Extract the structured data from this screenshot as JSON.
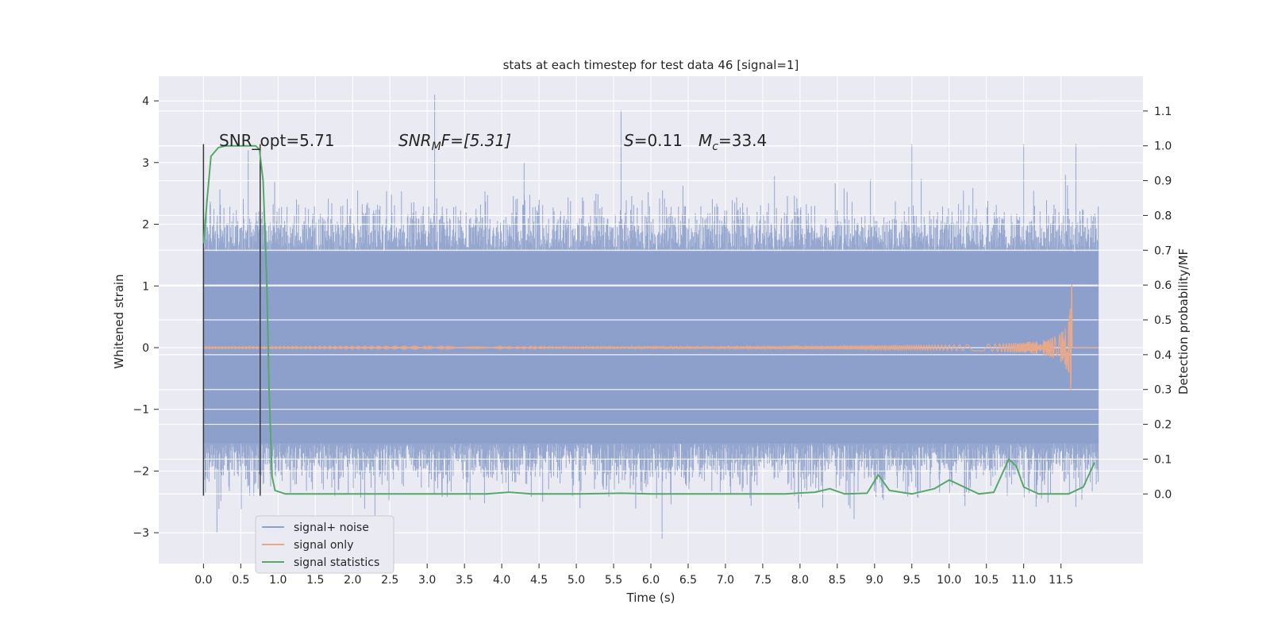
{
  "chart_data": {
    "type": "line",
    "title": "stats at each timestep for test data 46 [signal=1]",
    "xlabel": "Time (s)",
    "ylabel": "Whitened strain",
    "y2label": "Detection probability/MF",
    "xlim": [
      -0.6,
      12.6
    ],
    "ylim": [
      -3.5,
      4.4
    ],
    "y2lim": [
      -0.2,
      1.2
    ],
    "xticks": [
      "0.0",
      "0.5",
      "1.0",
      "1.5",
      "2.0",
      "2.5",
      "3.0",
      "3.5",
      "4.0",
      "4.5",
      "5.0",
      "5.5",
      "6.0",
      "6.5",
      "7.0",
      "7.5",
      "8.0",
      "8.5",
      "9.0",
      "9.5",
      "10.0",
      "10.5",
      "11.0",
      "11.5"
    ],
    "yticks": [
      "4",
      "3",
      "2",
      "1",
      "0",
      "−1",
      "−2",
      "−3"
    ],
    "y2ticks": [
      "1.1",
      "1.0",
      "0.9",
      "0.8",
      "0.7",
      "0.6",
      "0.5",
      "0.4",
      "0.3",
      "0.2",
      "0.1",
      "0.0"
    ],
    "grid": true,
    "legend_position": "lower-left",
    "annotations": {
      "snr_opt": "SNR_opt=5.71",
      "snr_mf_main": "SNR",
      "snr_mf_sub": "M",
      "snr_mf_rest": "F=[5.31]",
      "s_var": "S",
      "s_val": "=0.11",
      "mc_var": "M",
      "mc_sub": "c",
      "mc_val": "=33.4"
    },
    "vertical_markers": [
      {
        "x": 0.0,
        "y_top": 3.3,
        "y_bottom": -2.4
      },
      {
        "x": 0.76,
        "y_top": 3.3,
        "y_bottom": -2.4
      }
    ],
    "series": [
      {
        "name": "signal+ noise",
        "color": "#8da0cb",
        "axis": "left",
        "envelope": {
          "core": 1.55,
          "spikes_up": [
            [
              3.1,
              4.1
            ],
            [
              5.6,
              3.85
            ],
            [
              0.6,
              3.2
            ],
            [
              11.7,
              3.3
            ],
            [
              4.3,
              3.0
            ],
            [
              9.5,
              3.3
            ],
            [
              2.3,
              -3.2
            ],
            [
              0.18,
              -3.0
            ],
            [
              6.15,
              -3.1
            ],
            [
              11.0,
              3.3
            ]
          ]
        },
        "x_range": [
          0.0,
          12.0
        ]
      },
      {
        "name": "signal only",
        "color": "#e8a98b",
        "axis": "left",
        "chirp": {
          "x_start": 0.0,
          "x_peak": 11.65,
          "x_end": 11.65,
          "amp_peak": 1.2
        }
      },
      {
        "name": "signal statistics",
        "color": "#55a868",
        "axis": "right",
        "points": [
          [
            0.0,
            0.72
          ],
          [
            0.05,
            0.85
          ],
          [
            0.1,
            0.97
          ],
          [
            0.2,
            0.995
          ],
          [
            0.3,
            1.0
          ],
          [
            0.5,
            1.0
          ],
          [
            0.7,
            1.0
          ],
          [
            0.75,
            0.99
          ],
          [
            0.8,
            0.9
          ],
          [
            0.85,
            0.6
          ],
          [
            0.88,
            0.3
          ],
          [
            0.92,
            0.05
          ],
          [
            0.96,
            0.01
          ],
          [
            1.1,
            0.0
          ],
          [
            2.0,
            0.0
          ],
          [
            3.0,
            0.0
          ],
          [
            3.8,
            0.0
          ],
          [
            4.1,
            0.005
          ],
          [
            4.4,
            0.0
          ],
          [
            5.0,
            0.0
          ],
          [
            5.6,
            0.002
          ],
          [
            6.0,
            0.0
          ],
          [
            7.0,
            0.0
          ],
          [
            7.8,
            0.0
          ],
          [
            8.2,
            0.005
          ],
          [
            8.4,
            0.015
          ],
          [
            8.6,
            0.0
          ],
          [
            8.9,
            0.002
          ],
          [
            9.05,
            0.055
          ],
          [
            9.2,
            0.01
          ],
          [
            9.5,
            0.0
          ],
          [
            9.8,
            0.015
          ],
          [
            10.0,
            0.04
          ],
          [
            10.2,
            0.02
          ],
          [
            10.4,
            0.0
          ],
          [
            10.6,
            0.005
          ],
          [
            10.8,
            0.1
          ],
          [
            10.9,
            0.08
          ],
          [
            11.0,
            0.02
          ],
          [
            11.2,
            0.0
          ],
          [
            11.6,
            0.0
          ],
          [
            11.8,
            0.02
          ],
          [
            11.95,
            0.09
          ]
        ]
      }
    ]
  }
}
